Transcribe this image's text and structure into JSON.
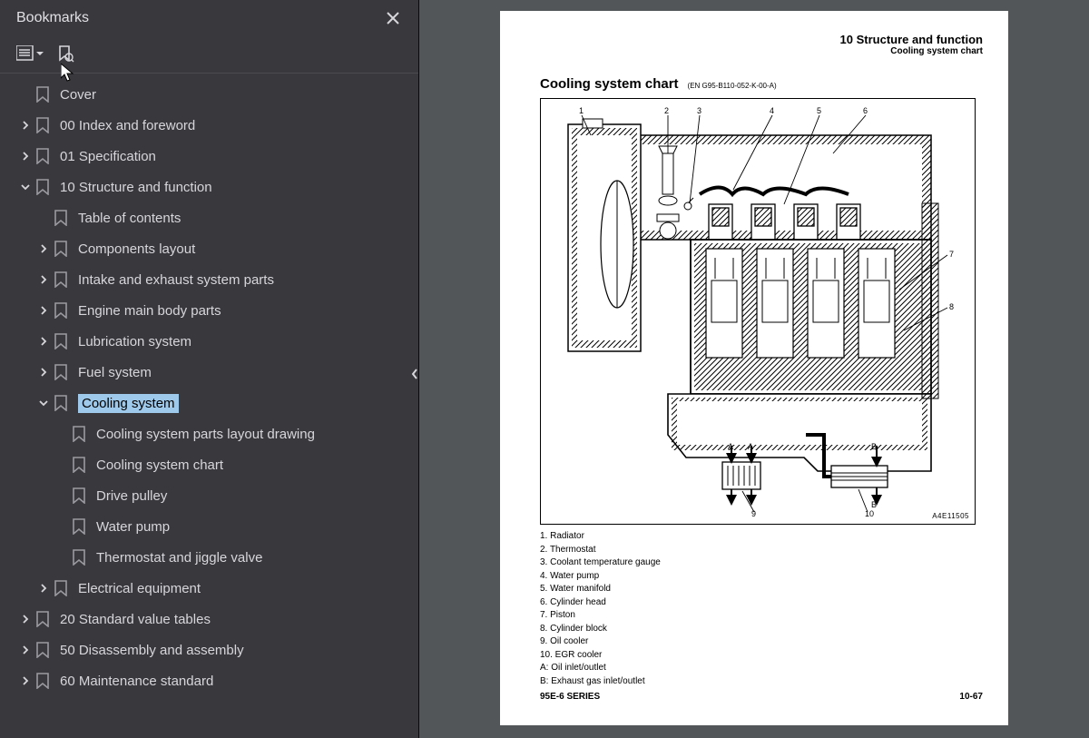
{
  "sidebar": {
    "title": "Bookmarks",
    "tree": [
      {
        "depth": 0,
        "expander": "none",
        "label": "Cover",
        "selected": false
      },
      {
        "depth": 0,
        "expander": "closed",
        "label": "00 Index and foreword",
        "selected": false
      },
      {
        "depth": 0,
        "expander": "closed",
        "label": "01 Specification",
        "selected": false
      },
      {
        "depth": 0,
        "expander": "open",
        "label": "10 Structure and function",
        "selected": false
      },
      {
        "depth": 1,
        "expander": "none",
        "label": "Table of contents",
        "selected": false
      },
      {
        "depth": 1,
        "expander": "closed",
        "label": "Components layout",
        "selected": false
      },
      {
        "depth": 1,
        "expander": "closed",
        "label": "Intake and exhaust system parts",
        "selected": false
      },
      {
        "depth": 1,
        "expander": "closed",
        "label": "Engine main body parts",
        "selected": false
      },
      {
        "depth": 1,
        "expander": "closed",
        "label": "Lubrication system",
        "selected": false
      },
      {
        "depth": 1,
        "expander": "closed",
        "label": "Fuel system",
        "selected": false
      },
      {
        "depth": 1,
        "expander": "open",
        "label": "Cooling system",
        "selected": true
      },
      {
        "depth": 2,
        "expander": "none",
        "label": "Cooling system parts layout drawing",
        "selected": false
      },
      {
        "depth": 2,
        "expander": "none",
        "label": "Cooling system chart",
        "selected": false
      },
      {
        "depth": 2,
        "expander": "none",
        "label": "Drive pulley",
        "selected": false
      },
      {
        "depth": 2,
        "expander": "none",
        "label": "Water pump",
        "selected": false
      },
      {
        "depth": 2,
        "expander": "none",
        "label": "Thermostat and jiggle valve",
        "selected": false
      },
      {
        "depth": 1,
        "expander": "closed",
        "label": "Electrical equipment",
        "selected": false
      },
      {
        "depth": 0,
        "expander": "closed",
        "label": "20 Standard value tables",
        "selected": false
      },
      {
        "depth": 0,
        "expander": "closed",
        "label": "50 Disassembly and assembly",
        "selected": false
      },
      {
        "depth": 0,
        "expander": "closed",
        "label": "60 Maintenance standard",
        "selected": false
      }
    ]
  },
  "page": {
    "header_line1": "10 Structure and function",
    "header_line2": "Cooling system chart",
    "title": "Cooling system chart",
    "title_code": "(EN G95-B110-052-K-00-A)",
    "diagram": {
      "border_color": "#000000",
      "background_color": "#ffffff",
      "callouts_top": [
        "1",
        "2",
        "3",
        "4",
        "5",
        "6"
      ],
      "callouts_right": [
        "7",
        "8"
      ],
      "callouts_bottom": [
        "9",
        "10"
      ],
      "port_labels": [
        "A",
        "A",
        "B",
        "B"
      ],
      "fig_code": "A4E11505"
    },
    "legend": [
      "1. Radiator",
      "2. Thermostat",
      "3. Coolant temperature gauge",
      "4. Water pump",
      "5. Water manifold",
      "6. Cylinder head",
      "7. Piston",
      "8. Cylinder block",
      "9. Oil cooler",
      "10. EGR cooler",
      "A: Oil inlet/outlet",
      "B: Exhaust gas inlet/outlet"
    ],
    "footer_left": "95E-6 SERIES",
    "footer_right": "10-67"
  },
  "colors": {
    "sidebar_bg": "#38383d",
    "sidebar_fg": "#d7d7db",
    "selection_bg": "#9ec9ea",
    "viewport_bg": "#525659",
    "page_bg": "#ffffff"
  }
}
